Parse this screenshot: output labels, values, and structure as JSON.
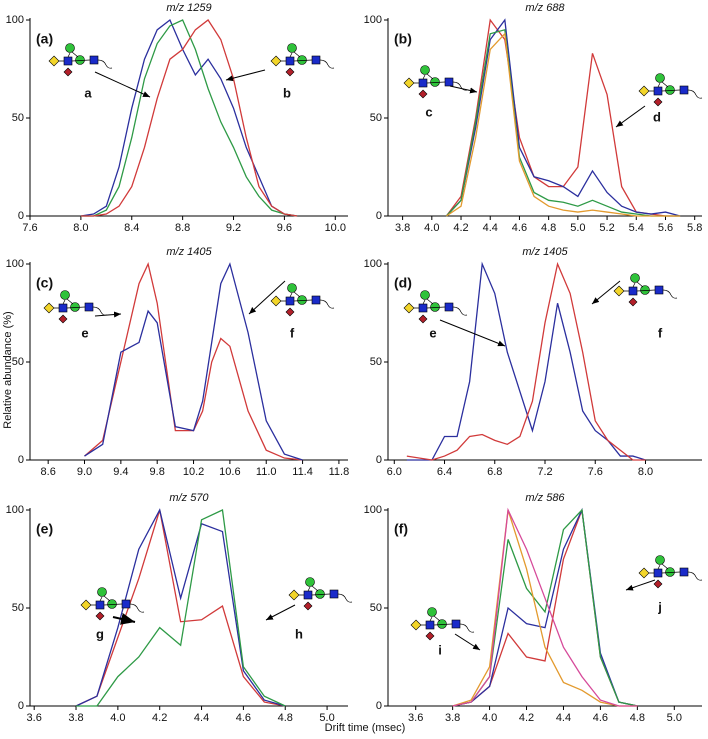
{
  "y_label": "Relative abundance (%)",
  "x_label": "Drift time (msec)",
  "chart_data": [
    {
      "type": "line",
      "panel_label": "(a)",
      "title": "m/z 1259",
      "annotations": [
        "a",
        "b"
      ],
      "x": [
        8.0,
        8.1,
        8.2,
        8.3,
        8.4,
        8.5,
        8.6,
        8.7,
        8.8,
        8.9,
        9.0,
        9.1,
        9.2,
        9.3,
        9.4,
        9.5,
        9.6,
        9.7
      ],
      "series": [
        {
          "color": "#2b2f9e",
          "values": [
            0,
            1,
            5,
            25,
            55,
            80,
            95,
            100,
            85,
            72,
            80,
            70,
            55,
            35,
            20,
            5,
            1,
            0
          ]
        },
        {
          "color": "#2e9a46",
          "values": [
            0,
            0,
            3,
            15,
            40,
            70,
            88,
            97,
            100,
            85,
            65,
            48,
            35,
            20,
            10,
            3,
            1,
            0
          ]
        },
        {
          "color": "#d13a3a",
          "values": [
            0,
            0,
            1,
            5,
            15,
            35,
            60,
            80,
            85,
            95,
            100,
            90,
            70,
            40,
            15,
            5,
            1,
            0
          ]
        }
      ],
      "xlim": [
        7.6,
        10.1
      ],
      "xticks": [
        7.6,
        {
          "value": 8,
          "label": "8.0"
        },
        8.4,
        8.8,
        9.2,
        9.6,
        {
          "value": 10,
          "label": "10.0"
        }
      ],
      "ylim": [
        0,
        100
      ],
      "yticks": [
        0,
        50,
        100
      ]
    },
    {
      "type": "line",
      "panel_label": "(b)",
      "title": "m/z 688",
      "annotations": [
        "c",
        "d"
      ],
      "x": [
        4.1,
        4.2,
        4.3,
        4.4,
        4.5,
        4.6,
        4.7,
        4.8,
        4.9,
        5.0,
        5.1,
        5.2,
        5.3,
        5.4,
        5.5,
        5.6,
        5.7
      ],
      "series": [
        {
          "color": "#d13a3a",
          "values": [
            0,
            10,
            50,
            100,
            90,
            40,
            20,
            15,
            15,
            25,
            83,
            62,
            15,
            2,
            1,
            0,
            0
          ]
        },
        {
          "color": "#2b2f9e",
          "values": [
            0,
            8,
            45,
            90,
            100,
            35,
            20,
            18,
            15,
            10,
            23,
            12,
            5,
            2,
            1,
            2,
            0
          ]
        },
        {
          "color": "#2e9a46",
          "values": [
            0,
            8,
            48,
            93,
            95,
            30,
            12,
            8,
            7,
            5,
            8,
            5,
            2,
            1,
            0,
            0,
            0
          ]
        },
        {
          "color": "#e39a2e",
          "values": [
            0,
            5,
            40,
            85,
            93,
            28,
            10,
            5,
            3,
            2,
            3,
            2,
            1,
            0,
            0,
            0,
            0
          ]
        }
      ],
      "xlim": [
        3.7,
        5.85
      ],
      "xticks": [
        3.8,
        {
          "value": 4,
          "label": "4.0"
        },
        4.2,
        4.4,
        4.6,
        4.8,
        {
          "value": 5,
          "label": "5.0"
        },
        5.2,
        5.4,
        5.6,
        5.8
      ],
      "ylim": [
        0,
        100
      ],
      "yticks": [
        0,
        50,
        100
      ]
    },
    {
      "type": "line",
      "panel_label": "(c)",
      "title": "m/z 1405",
      "annotations": [
        "e",
        "f"
      ],
      "x": [
        9.0,
        9.2,
        9.4,
        9.6,
        9.7,
        9.8,
        10.0,
        10.2,
        10.3,
        10.4,
        10.5,
        10.6,
        10.8,
        11.0,
        11.2,
        11.4
      ],
      "series": [
        {
          "color": "#d13a3a",
          "values": [
            2,
            10,
            50,
            90,
            100,
            80,
            15,
            15,
            25,
            50,
            62,
            58,
            25,
            5,
            1,
            0
          ]
        },
        {
          "color": "#2b2f9e",
          "values": [
            2,
            8,
            55,
            60,
            76,
            70,
            17,
            15,
            30,
            60,
            90,
            100,
            65,
            20,
            3,
            0
          ]
        }
      ],
      "xlim": [
        8.4,
        11.9
      ],
      "xticks": [
        8.6,
        {
          "value": 9,
          "label": "9.0"
        },
        9.4,
        9.8,
        10.2,
        10.6,
        {
          "value": 11,
          "label": "11.0"
        },
        11.4,
        11.8
      ],
      "ylim": [
        0,
        100
      ],
      "yticks": [
        0,
        50,
        100
      ]
    },
    {
      "type": "line",
      "panel_label": "(d)",
      "title": "m/z 1405",
      "annotations": [
        "e",
        "f"
      ],
      "x": [
        6.1,
        6.3,
        6.4,
        6.5,
        6.6,
        6.7,
        6.8,
        6.9,
        7.0,
        7.1,
        7.2,
        7.3,
        7.4,
        7.5,
        7.6,
        7.7,
        7.8,
        7.9,
        8.0
      ],
      "series": [
        {
          "color": "#2b2f9e",
          "values": [
            0,
            0,
            12,
            12,
            40,
            100,
            85,
            55,
            35,
            15,
            40,
            80,
            55,
            25,
            15,
            10,
            2,
            2,
            0
          ]
        },
        {
          "color": "#d13a3a",
          "values": [
            2,
            0,
            2,
            5,
            12,
            13,
            10,
            8,
            12,
            30,
            70,
            100,
            85,
            55,
            20,
            10,
            5,
            0,
            0
          ]
        }
      ],
      "xlim": [
        5.95,
        8.45
      ],
      "xticks": [
        {
          "value": 6,
          "label": "6.0"
        },
        6.4,
        6.8,
        7.2,
        7.6,
        {
          "value": 8,
          "label": "8.0"
        }
      ],
      "ylim": [
        0,
        100
      ],
      "yticks": [
        0,
        50,
        100
      ]
    },
    {
      "type": "line",
      "panel_label": "(e)",
      "title": "m/z 570",
      "annotations": [
        "g",
        "h"
      ],
      "x": [
        3.8,
        3.9,
        4.0,
        4.1,
        4.2,
        4.3,
        4.4,
        4.5,
        4.6,
        4.7,
        4.8
      ],
      "series": [
        {
          "color": "#d13a3a",
          "values": [
            0,
            5,
            35,
            65,
            100,
            43,
            44,
            51,
            15,
            2,
            0
          ]
        },
        {
          "color": "#2b2f9e",
          "values": [
            0,
            5,
            40,
            80,
            100,
            55,
            93,
            89,
            18,
            3,
            0
          ]
        },
        {
          "color": "#2e9a46",
          "values": [
            0,
            0,
            15,
            25,
            40,
            31,
            95,
            100,
            20,
            5,
            0
          ]
        }
      ],
      "xlim": [
        3.58,
        5.1
      ],
      "xticks": [
        3.6,
        3.8,
        {
          "value": 4,
          "label": "4.0"
        },
        4.2,
        4.4,
        4.6,
        4.8,
        {
          "value": 5,
          "label": "5.0"
        }
      ],
      "ylim": [
        0,
        100
      ],
      "yticks": [
        0,
        50,
        100
      ]
    },
    {
      "type": "line",
      "panel_label": "(f)",
      "title": "m/z 586",
      "annotations": [
        "i",
        "j"
      ],
      "x": [
        3.8,
        3.9,
        4.0,
        4.1,
        4.2,
        4.3,
        4.4,
        4.5,
        4.6,
        4.7,
        4.8
      ],
      "series": [
        {
          "color": "#d13a3a",
          "values": [
            0,
            2,
            10,
            37,
            25,
            23,
            75,
            100,
            25,
            2,
            0
          ]
        },
        {
          "color": "#2b2f9e",
          "values": [
            0,
            2,
            10,
            50,
            42,
            40,
            80,
            100,
            27,
            2,
            0
          ]
        },
        {
          "color": "#2e9a46",
          "values": [
            0,
            2,
            15,
            85,
            60,
            48,
            90,
            100,
            25,
            2,
            0
          ]
        },
        {
          "color": "#e39a2e",
          "values": [
            0,
            3,
            20,
            100,
            70,
            30,
            12,
            8,
            2,
            0,
            0
          ]
        },
        {
          "color": "#d64a9a",
          "values": [
            0,
            2,
            15,
            100,
            80,
            55,
            30,
            15,
            3,
            0,
            0
          ]
        }
      ],
      "xlim": [
        3.45,
        5.15
      ],
      "xticks": [
        3.6,
        3.8,
        {
          "value": 4,
          "label": "4.0"
        },
        4.2,
        4.4,
        4.6,
        4.8,
        {
          "value": 5,
          "label": "5.0"
        }
      ],
      "ylim": [
        0,
        100
      ],
      "yticks": [
        0,
        50,
        100
      ]
    }
  ]
}
